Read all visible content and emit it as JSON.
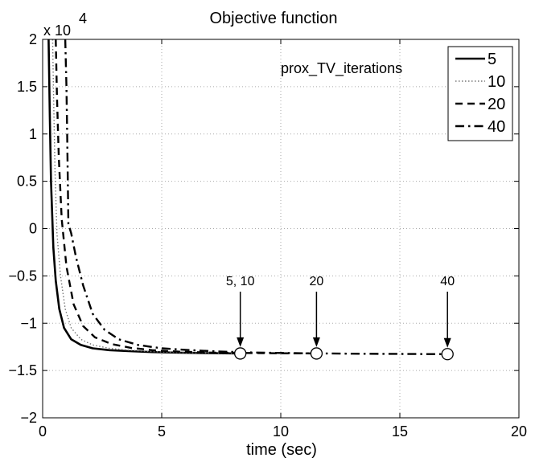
{
  "chart_data": {
    "type": "line",
    "title": "Objective function",
    "xlabel": "time (sec)",
    "ylabel": "",
    "xlim": [
      0,
      20
    ],
    "ylim": [
      -2,
      2
    ],
    "y_scale_label": "x 10",
    "y_scale_exponent": "4",
    "grid": true,
    "x_ticks": [
      {
        "value": 0,
        "label": "0"
      },
      {
        "value": 5,
        "label": "5"
      },
      {
        "value": 10,
        "label": "10"
      },
      {
        "value": 15,
        "label": "15"
      },
      {
        "value": 20,
        "label": "20"
      }
    ],
    "y_ticks": [
      {
        "value": -2,
        "label": "−2"
      },
      {
        "value": -1.5,
        "label": "−1.5"
      },
      {
        "value": -1,
        "label": "−1"
      },
      {
        "value": -0.5,
        "label": "−0.5"
      },
      {
        "value": 0,
        "label": "0"
      },
      {
        "value": 0.5,
        "label": "0.5"
      },
      {
        "value": 1,
        "label": "1"
      },
      {
        "value": 1.5,
        "label": "1.5"
      },
      {
        "value": 2,
        "label": "2"
      }
    ],
    "legend": {
      "title": "prox_TV_iterations",
      "placement": "top-right",
      "entries": [
        {
          "label": "5",
          "style": "solid"
        },
        {
          "label": "10",
          "style": "dotted"
        },
        {
          "label": "20",
          "style": "dashed"
        },
        {
          "label": "40",
          "style": "dashdot"
        }
      ]
    },
    "series": [
      {
        "name": "5",
        "style": "solid",
        "x": [
          0.25,
          0.3,
          0.35,
          0.45,
          0.55,
          0.7,
          0.9,
          1.2,
          1.6,
          2.1,
          2.8,
          3.6,
          4.6,
          5.8,
          7.0,
          8.3
        ],
        "y": [
          2.0,
          1.2,
          0.5,
          -0.2,
          -0.55,
          -0.85,
          -1.05,
          -1.17,
          -1.23,
          -1.265,
          -1.285,
          -1.295,
          -1.305,
          -1.312,
          -1.316,
          -1.32
        ]
      },
      {
        "name": "10",
        "style": "dotted",
        "x": [
          0.42,
          0.46,
          0.52,
          0.6,
          0.75,
          0.95,
          1.2,
          1.6,
          2.1,
          2.8,
          3.6,
          4.6,
          5.8,
          7.0,
          8.3
        ],
        "y": [
          2.0,
          1.4,
          0.6,
          -0.05,
          -0.5,
          -0.85,
          -1.05,
          -1.17,
          -1.23,
          -1.265,
          -1.285,
          -1.3,
          -1.31,
          -1.315,
          -1.32
        ]
      },
      {
        "name": "20",
        "style": "dashed",
        "x": [
          0.55,
          0.6,
          0.68,
          0.8,
          1.0,
          1.3,
          1.7,
          2.2,
          2.9,
          3.7,
          4.6,
          5.7,
          7.0,
          8.5,
          10.0,
          11.5
        ],
        "y": [
          2.0,
          1.4,
          0.75,
          0.1,
          -0.4,
          -0.8,
          -1.03,
          -1.15,
          -1.22,
          -1.26,
          -1.285,
          -1.3,
          -1.31,
          -1.315,
          -1.318,
          -1.32
        ]
      },
      {
        "name": "40",
        "style": "dashdot",
        "x": [
          0.95,
          1.0,
          1.03,
          1.08,
          1.2,
          1.4,
          1.7,
          2.1,
          2.6,
          3.2,
          4.0,
          5.0,
          6.2,
          7.5,
          9.0,
          11.0,
          13.0,
          15.0,
          17.0
        ],
        "y": [
          2.0,
          1.5,
          1.0,
          0.05,
          -0.05,
          -0.3,
          -0.6,
          -0.9,
          -1.07,
          -1.17,
          -1.23,
          -1.265,
          -1.285,
          -1.3,
          -1.31,
          -1.318,
          -1.322,
          -1.325,
          -1.327
        ]
      }
    ],
    "annotations": [
      {
        "label": "5, 10",
        "x": 8.3,
        "y": -1.32
      },
      {
        "label": "20",
        "x": 11.5,
        "y": -1.32
      },
      {
        "label": "40",
        "x": 17.0,
        "y": -1.327
      }
    ]
  }
}
